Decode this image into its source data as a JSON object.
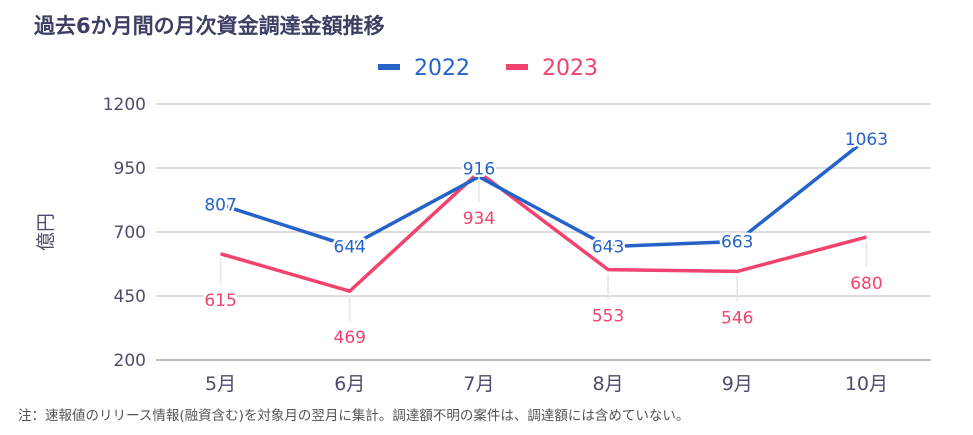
{
  "chart_data": {
    "type": "line",
    "title": "過去6か月間の月次資金調達金額推移",
    "xlabel": "",
    "ylabel": "億円",
    "categories": [
      "5月",
      "6月",
      "7月",
      "8月",
      "9月",
      "10月"
    ],
    "ylim": [
      200,
      1200
    ],
    "yticks": [
      200,
      450,
      700,
      950,
      1200
    ],
    "grid": true,
    "legend_position": "top-right",
    "series": [
      {
        "name": "2022",
        "color": "#2563c9",
        "values": [
          807,
          644,
          916,
          643,
          663,
          1063
        ]
      },
      {
        "name": "2023",
        "color": "#f2436f",
        "values": [
          615,
          469,
          934,
          553,
          546,
          680
        ]
      }
    ],
    "note": "注：速報値のリリース情報(融資含む)を対象月の翌月に集計。調達額不明の案件は、調達額には含めていない。"
  }
}
